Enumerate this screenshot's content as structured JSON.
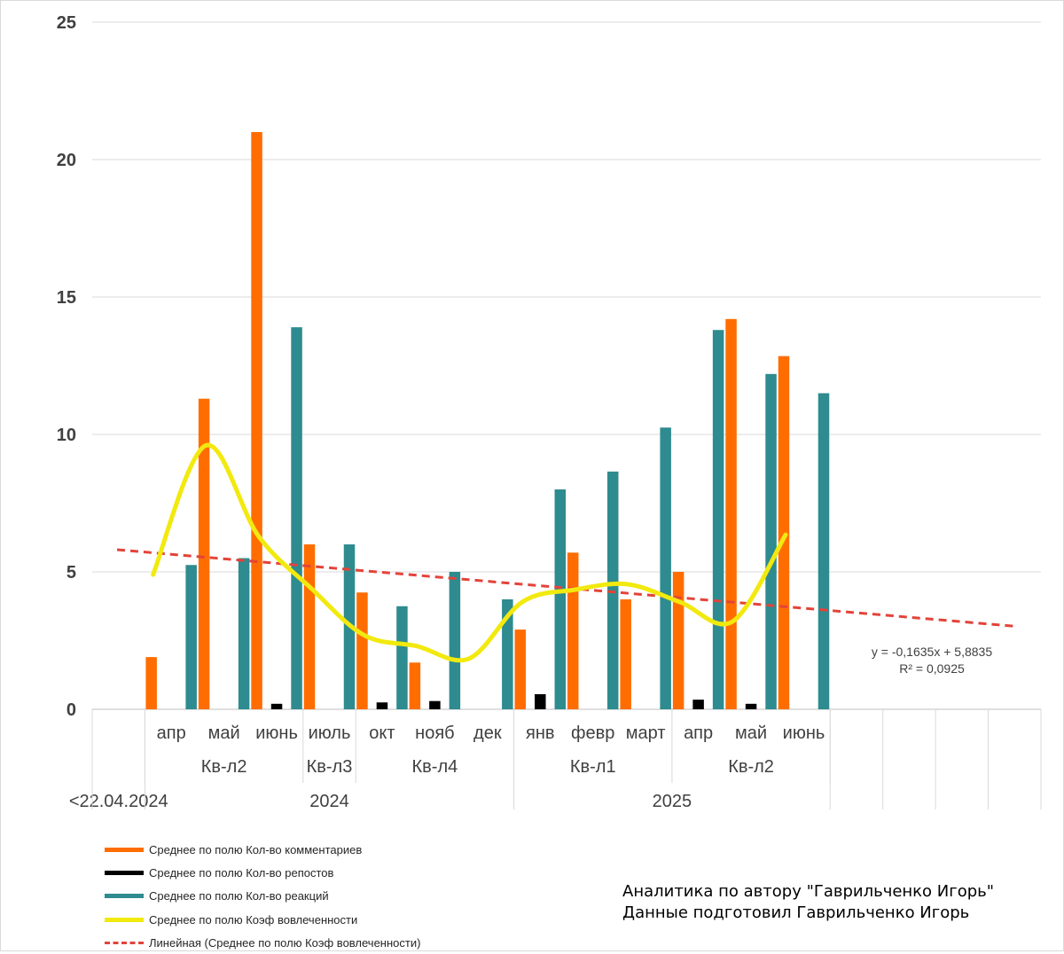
{
  "chart_data": {
    "type": "bar",
    "categories": [
      {
        "month": "",
        "quarter": "",
        "year": "<22.04.2024"
      },
      {
        "month": "апр",
        "quarter": "Кв-л2",
        "year": "2024"
      },
      {
        "month": "май",
        "quarter": "Кв-л2",
        "year": "2024"
      },
      {
        "month": "июнь",
        "quarter": "Кв-л2",
        "year": "2024"
      },
      {
        "month": "июль",
        "quarter": "Кв-л3",
        "year": "2024"
      },
      {
        "month": "окт",
        "quarter": "Кв-л4",
        "year": "2024"
      },
      {
        "month": "нояб",
        "quarter": "Кв-л4",
        "year": "2024"
      },
      {
        "month": "дек",
        "quarter": "Кв-л4",
        "year": "2024"
      },
      {
        "month": "янв",
        "quarter": "Кв-л1",
        "year": "2025"
      },
      {
        "month": "февр",
        "quarter": "Кв-л1",
        "year": "2025"
      },
      {
        "month": "март",
        "quarter": "Кв-л1",
        "year": "2025"
      },
      {
        "month": "апр",
        "quarter": "Кв-л2",
        "year": "2025"
      },
      {
        "month": "май",
        "quarter": "Кв-л2",
        "year": "2025"
      },
      {
        "month": "июнь",
        "quarter": "Кв-л2",
        "year": "2025"
      },
      {
        "month": "",
        "quarter": "",
        "year": ""
      },
      {
        "month": "",
        "quarter": "",
        "year": ""
      },
      {
        "month": "",
        "quarter": "",
        "year": ""
      },
      {
        "month": "",
        "quarter": "",
        "year": ""
      }
    ],
    "quarter_groups": [
      {
        "label": "Кв-л2",
        "from": 1,
        "to": 3
      },
      {
        "label": "Кв-л3",
        "from": 4,
        "to": 4
      },
      {
        "label": "Кв-л4",
        "from": 5,
        "to": 7
      },
      {
        "label": "Кв-л1",
        "from": 8,
        "to": 10
      },
      {
        "label": "Кв-л2",
        "from": 11,
        "to": 13
      }
    ],
    "year_groups": [
      {
        "label": "<22.04.2024",
        "from": 0,
        "to": 0
      },
      {
        "label": "2024",
        "from": 1,
        "to": 7
      },
      {
        "label": "2025",
        "from": 8,
        "to": 13
      }
    ],
    "series": [
      {
        "name": "Среднее по полю Кол-во комментариев",
        "kind": "bar",
        "color": "#ff6d00",
        "values": [
          null,
          1.9,
          11.3,
          21.0,
          6.0,
          4.25,
          1.7,
          0,
          2.9,
          5.7,
          4.0,
          5.0,
          14.2,
          12.85,
          null,
          null,
          null,
          null
        ]
      },
      {
        "name": "Среднее по полю Кол-во репостов",
        "kind": "bar",
        "color": "#000000",
        "values": [
          null,
          0,
          0,
          0.2,
          0,
          0.25,
          0.3,
          0,
          0.55,
          0,
          0,
          0.35,
          0.2,
          0,
          null,
          null,
          null,
          null
        ]
      },
      {
        "name": "Среднее по полю Кол-во реакций",
        "kind": "bar",
        "color": "#2e8b8f",
        "values": [
          null,
          5.25,
          5.5,
          13.9,
          6.0,
          3.75,
          5.0,
          4.0,
          8.0,
          8.65,
          10.25,
          13.8,
          12.2,
          11.5,
          null,
          null,
          null,
          null
        ]
      },
      {
        "name": "Среднее по полю Коэф вовлеченности",
        "kind": "smooth-line",
        "color": "#f2e90e",
        "values": [
          null,
          4.9,
          9.6,
          6.3,
          4.4,
          2.7,
          2.3,
          1.85,
          3.9,
          4.35,
          4.55,
          3.9,
          3.2,
          6.35,
          null,
          null,
          null,
          null
        ]
      }
    ],
    "trendline": {
      "name": "Линейная (Среднее по полю Коэф вовлеченности)",
      "color": "#e3433a",
      "slope": -0.1635,
      "intercept": 5.8835,
      "equation": "y = -0,1635x + 5,8835",
      "r2": "R² = 0,0925"
    },
    "ylim": [
      0,
      25
    ],
    "yticks": [
      0,
      5,
      10,
      15,
      20,
      25
    ],
    "grid": true,
    "legend_position": "bottom-left"
  },
  "credit": {
    "line1": "Аналитика по автору \"Гаврильченко Игорь\"",
    "line2": "Данные подготовил Гаврильченко Игорь"
  }
}
